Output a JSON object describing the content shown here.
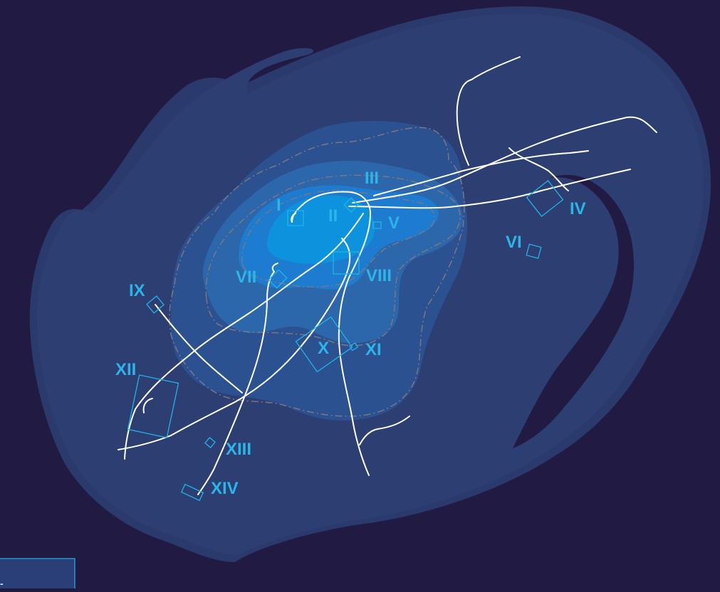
{
  "map": {
    "background_color": "#211b43",
    "land_colors": {
      "outer": "#2d3e72",
      "zone_1": "#2b5191",
      "zone_2": "#2c66ab",
      "zone_3": "#1d7ccf",
      "zone_4": "#0d92dd"
    },
    "contour_color": "#8a7f86",
    "road_color": "#ffffff",
    "site_marker_color": "#1fb4e8",
    "site_label_color": "#2bb5e8"
  },
  "sites": [
    {
      "id": "I",
      "label": "I"
    },
    {
      "id": "II",
      "label": "II"
    },
    {
      "id": "III",
      "label": "III"
    },
    {
      "id": "IV",
      "label": "IV"
    },
    {
      "id": "V",
      "label": "V"
    },
    {
      "id": "VI",
      "label": "VI"
    },
    {
      "id": "VII",
      "label": "VII"
    },
    {
      "id": "VIII",
      "label": "VIII"
    },
    {
      "id": "IX",
      "label": "IX"
    },
    {
      "id": "X",
      "label": "X"
    },
    {
      "id": "XI",
      "label": "XI"
    },
    {
      "id": "XII",
      "label": "XII"
    },
    {
      "id": "XIII",
      "label": "XIII"
    },
    {
      "id": "XIV",
      "label": "XIV"
    }
  ],
  "legend_box": {
    "mark": "-"
  }
}
